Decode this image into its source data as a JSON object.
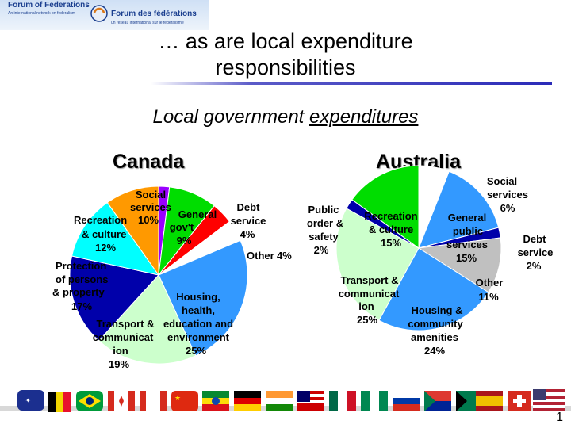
{
  "logo": {
    "left_title": "Forum of Federations",
    "left_sub": "An international network on federalism",
    "right_title": "Forum des fédérations",
    "right_sub": "un réseau international sur le fédéralisme"
  },
  "title_lines": [
    "… as are local expenditure",
    "responsibilities"
  ],
  "subtitle_plain": "Local government ",
  "subtitle_underlined": "expenditures",
  "page_number": "1",
  "colors": {
    "orange": "#ff9900",
    "purple": "#9900ff",
    "green": "#00dd00",
    "cyan": "#00ffff",
    "red": "#ff0000",
    "white": "#ffffff",
    "blue": "#3399ff",
    "mint": "#ccffcc",
    "navy": "#0000aa",
    "gray": "#c0c0c0"
  },
  "chart_data": [
    {
      "type": "pie",
      "title": "Canada",
      "slices": [
        {
          "label_lines": [
            "Social",
            "services"
          ],
          "value_text": "",
          "value": 2,
          "color": "#9900ff"
        },
        {
          "label_lines": [
            "General",
            "gov't"
          ],
          "value_text": "9%",
          "value": 9,
          "color": "#00dd00"
        },
        {
          "label_lines": [
            "Debt",
            "service"
          ],
          "value_text": "4%",
          "value": 4,
          "color": "#ff0000"
        },
        {
          "label_lines": [
            "Other"
          ],
          "value_text": "4%",
          "value": 4,
          "color": "#ffffff"
        },
        {
          "label_lines": [
            "Housing,",
            "health,",
            "education and",
            "environment"
          ],
          "value_text": "25%",
          "value": 25,
          "color": "#3399ff"
        },
        {
          "label_lines": [
            "Transport &",
            "communicat",
            "ion"
          ],
          "value_text": "19%",
          "value": 19,
          "color": "#ccffcc"
        },
        {
          "label_lines": [
            "Protection",
            "of persons",
            "& property"
          ],
          "value_text": "17%",
          "value": 17,
          "color": "#0000aa"
        },
        {
          "label_lines": [
            "Recreation",
            "& culture"
          ],
          "value_text": "12%",
          "value": 12,
          "color": "#00ffff"
        },
        {
          "label_lines": [
            "Recreation"
          ],
          "value_text": "10%",
          "value": 10,
          "color": "#ff9900"
        }
      ]
    },
    {
      "type": "pie",
      "title": "Australia",
      "slices": [
        {
          "label_lines": [
            "Social",
            "services"
          ],
          "value_text": "6%",
          "value": 6,
          "color": "#ffffff"
        },
        {
          "label_lines": [
            "General",
            "public",
            "services"
          ],
          "value_text": "15%",
          "value": 15,
          "color": "#3399ff"
        },
        {
          "label_lines": [
            "Debt",
            "service"
          ],
          "value_text": "2%",
          "value": 2,
          "color": "#0000aa"
        },
        {
          "label_lines": [
            "Other"
          ],
          "value_text": "11%",
          "value": 11,
          "color": "#c0c0c0"
        },
        {
          "label_lines": [
            "Housing &",
            "community",
            "amenities"
          ],
          "value_text": "24%",
          "value": 24,
          "color": "#3399ff"
        },
        {
          "label_lines": [
            "Transport &",
            "communicat",
            "ion"
          ],
          "value_text": "25%",
          "value": 25,
          "color": "#ccffcc"
        },
        {
          "label_lines": [
            "Public",
            "order &",
            "safety"
          ],
          "value_text": "2%",
          "value": 2,
          "color": "#0000aa"
        },
        {
          "label_lines": [
            "Recreation",
            "& culture"
          ],
          "value_text": "15%",
          "value": 15,
          "color": "#00dd00"
        }
      ]
    }
  ]
}
